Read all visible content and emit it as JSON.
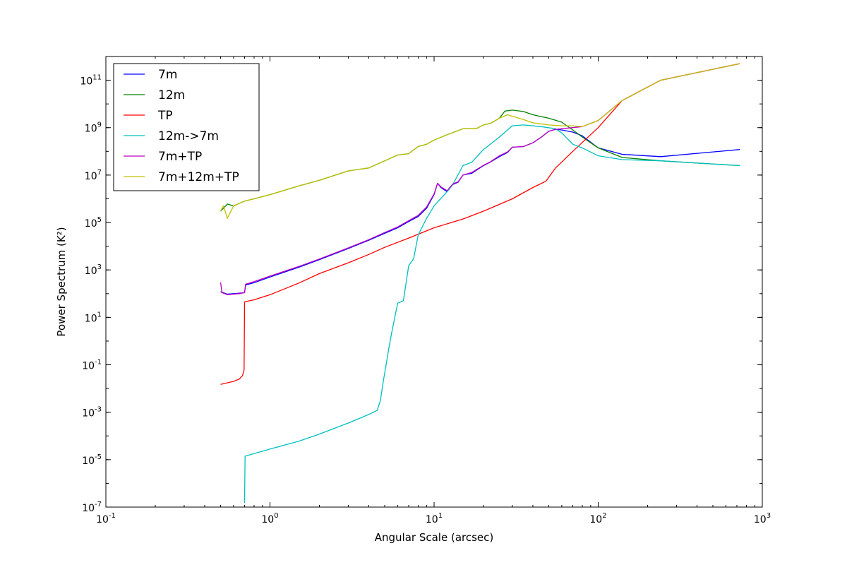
{
  "chart_data": {
    "type": "line",
    "title": "",
    "xlabel": "Angular Scale (arcsec)",
    "ylabel": "Power Spectrum (K²)",
    "xscale": "log",
    "yscale": "log",
    "xlim": [
      0.1,
      1000
    ],
    "ylim": [
      1e-07,
      1000000000000.0
    ],
    "x_ticks": [
      {
        "value": 0.1,
        "base": "10",
        "exp": "-1"
      },
      {
        "value": 1,
        "base": "10",
        "exp": "0"
      },
      {
        "value": 10,
        "base": "10",
        "exp": "1"
      },
      {
        "value": 100,
        "base": "10",
        "exp": "2"
      },
      {
        "value": 1000,
        "base": "10",
        "exp": "3"
      }
    ],
    "y_ticks": [
      {
        "value": 1e-07,
        "base": "10",
        "exp": "-7"
      },
      {
        "value": 1e-05,
        "base": "10",
        "exp": "-5"
      },
      {
        "value": 0.001,
        "base": "10",
        "exp": "-3"
      },
      {
        "value": 0.1,
        "base": "10",
        "exp": "-1"
      },
      {
        "value": 10,
        "base": "10",
        "exp": "1"
      },
      {
        "value": 1000,
        "base": "10",
        "exp": "3"
      },
      {
        "value": 100000,
        "base": "10",
        "exp": "5"
      },
      {
        "value": 10000000,
        "base": "10",
        "exp": "7"
      },
      {
        "value": 1000000000,
        "base": "10",
        "exp": "9"
      },
      {
        "value": 100000000000,
        "base": "10",
        "exp": "11"
      }
    ],
    "grid": false,
    "legend_position": "upper-left",
    "series": [
      {
        "name": "7m",
        "color": "#0000ff",
        "points": [
          [
            0.5,
            120
          ],
          [
            0.55,
            95
          ],
          [
            0.6,
            100
          ],
          [
            0.65,
            105
          ],
          [
            0.7,
            110
          ],
          [
            0.71,
            230
          ],
          [
            0.8,
            290
          ],
          [
            1.0,
            500
          ],
          [
            1.5,
            1300
          ],
          [
            2,
            2700
          ],
          [
            3,
            8000
          ],
          [
            4,
            18000
          ],
          [
            5,
            35000
          ],
          [
            6,
            60000
          ],
          [
            7,
            110000
          ],
          [
            8,
            180000
          ],
          [
            9,
            400000
          ],
          [
            10,
            1500000
          ],
          [
            10.5,
            4500000
          ],
          [
            11,
            3000000
          ],
          [
            12,
            2000000
          ],
          [
            13,
            4000000
          ],
          [
            14,
            5000000
          ],
          [
            15,
            10000000
          ],
          [
            17,
            12000000
          ],
          [
            20,
            25000000
          ],
          [
            22,
            35000000
          ],
          [
            25,
            60000000
          ],
          [
            28,
            90000000
          ],
          [
            30,
            150000000
          ],
          [
            35,
            160000000
          ],
          [
            40,
            230000000
          ],
          [
            45,
            400000000
          ],
          [
            50,
            700000000
          ],
          [
            55,
            850000000
          ],
          [
            60,
            800000000
          ],
          [
            70,
            650000000
          ],
          [
            80,
            450000000
          ],
          [
            100,
            140000000
          ],
          [
            140,
            75000000
          ],
          [
            240,
            60000000
          ],
          [
            730,
            120000000
          ]
        ]
      },
      {
        "name": "12m",
        "color": "#008000",
        "points": [
          [
            0.5,
            300000
          ],
          [
            0.55,
            600000
          ],
          [
            0.6,
            500000
          ],
          [
            0.7,
            800000
          ],
          [
            0.8,
            1000000
          ],
          [
            1,
            1500000
          ],
          [
            1.5,
            3500000
          ],
          [
            2,
            6000000
          ],
          [
            3,
            15000000
          ],
          [
            4,
            20000000
          ],
          [
            5,
            40000000
          ],
          [
            6,
            70000000
          ],
          [
            7,
            80000000
          ],
          [
            8,
            160000000
          ],
          [
            9,
            200000000
          ],
          [
            10,
            300000000
          ],
          [
            12,
            500000000
          ],
          [
            15,
            900000000
          ],
          [
            18,
            900000000
          ],
          [
            20,
            1300000000
          ],
          [
            22,
            1500000000
          ],
          [
            25,
            2500000000
          ],
          [
            27,
            5000000000
          ],
          [
            30,
            5500000000
          ],
          [
            35,
            4800000000
          ],
          [
            40,
            3500000000
          ],
          [
            50,
            2500000000
          ],
          [
            60,
            1700000000
          ],
          [
            70,
            800000000
          ],
          [
            80,
            400000000
          ],
          [
            100,
            140000000
          ],
          [
            140,
            55000000
          ],
          [
            240,
            40000000
          ],
          [
            730,
            25000000
          ]
        ]
      },
      {
        "name": "TP",
        "color": "#ff0000",
        "points": [
          [
            0.5,
            0.015
          ],
          [
            0.6,
            0.02
          ],
          [
            0.65,
            0.025
          ],
          [
            0.68,
            0.035
          ],
          [
            0.695,
            0.06
          ],
          [
            0.7,
            45
          ],
          [
            0.8,
            55
          ],
          [
            1,
            90
          ],
          [
            1.5,
            280
          ],
          [
            2,
            700
          ],
          [
            3,
            2000
          ],
          [
            4,
            4500
          ],
          [
            5,
            9000
          ],
          [
            7,
            22000
          ],
          [
            10,
            60000
          ],
          [
            15,
            140000
          ],
          [
            20,
            300000
          ],
          [
            30,
            1000000
          ],
          [
            40,
            3000000
          ],
          [
            48,
            5500000
          ],
          [
            55,
            20000000
          ],
          [
            70,
            100000000
          ],
          [
            100,
            1000000000
          ],
          [
            140,
            14000000000
          ],
          [
            240,
            100000000000
          ],
          [
            730,
            500000000000
          ]
        ]
      },
      {
        "name": "12m->7m",
        "color": "#00bfbf",
        "points": [
          [
            0.7,
            1.5e-07
          ],
          [
            0.705,
            1.4e-05
          ],
          [
            0.8,
            1.8e-05
          ],
          [
            1,
            2.8e-05
          ],
          [
            1.5,
            6e-05
          ],
          [
            2,
            0.00012
          ],
          [
            3,
            0.00035
          ],
          [
            4,
            0.0008
          ],
          [
            4.5,
            0.0012
          ],
          [
            4.7,
            0.003
          ],
          [
            4.9,
            0.02
          ],
          [
            5.1,
            0.1
          ],
          [
            5.3,
            0.5
          ],
          [
            5.5,
            2
          ],
          [
            6,
            40
          ],
          [
            6.5,
            50
          ],
          [
            7,
            1500
          ],
          [
            7.5,
            3000
          ],
          [
            8,
            30000
          ],
          [
            9,
            150000
          ],
          [
            10,
            500000
          ],
          [
            12,
            2000000
          ],
          [
            13,
            4000000
          ],
          [
            15,
            25000000
          ],
          [
            17,
            35000000
          ],
          [
            20,
            120000000
          ],
          [
            22,
            200000000
          ],
          [
            25,
            400000000
          ],
          [
            30,
            1200000000
          ],
          [
            35,
            1300000000
          ],
          [
            45,
            1100000000
          ],
          [
            55,
            900000000
          ],
          [
            60,
            600000000
          ],
          [
            70,
            200000000
          ],
          [
            80,
            140000000
          ],
          [
            100,
            65000000
          ],
          [
            140,
            45000000
          ],
          [
            240,
            40000000
          ],
          [
            730,
            25000000
          ]
        ]
      },
      {
        "name": "7m+TP",
        "color": "#bf00bf",
        "points": [
          [
            0.5,
            300
          ],
          [
            0.51,
            110
          ],
          [
            0.55,
            90
          ],
          [
            0.6,
            95
          ],
          [
            0.65,
            100
          ],
          [
            0.7,
            110
          ],
          [
            0.71,
            250
          ],
          [
            0.8,
            320
          ],
          [
            1,
            550
          ],
          [
            1.5,
            1400
          ],
          [
            2,
            2900
          ],
          [
            3,
            8500
          ],
          [
            4,
            19000
          ],
          [
            5,
            38000
          ],
          [
            6,
            65000
          ],
          [
            7,
            120000
          ],
          [
            8,
            200000
          ],
          [
            9,
            450000
          ],
          [
            10,
            1600000
          ],
          [
            10.5,
            4500000
          ],
          [
            11,
            3200000
          ],
          [
            12,
            2200000
          ],
          [
            13,
            4200000
          ],
          [
            14,
            5200000
          ],
          [
            15,
            10000000
          ],
          [
            17,
            13000000
          ],
          [
            20,
            26000000
          ],
          [
            22,
            36000000
          ],
          [
            25,
            65000000
          ],
          [
            28,
            95000000
          ],
          [
            30,
            150000000
          ],
          [
            35,
            160000000
          ],
          [
            40,
            230000000
          ],
          [
            45,
            400000000
          ],
          [
            50,
            700000000
          ],
          [
            55,
            850000000
          ],
          [
            60,
            900000000
          ],
          [
            70,
            1000000000
          ],
          [
            80,
            1100000000
          ],
          [
            100,
            2000000000
          ],
          [
            140,
            14000000000
          ],
          [
            240,
            100000000000
          ],
          [
            730,
            500000000000
          ]
        ]
      },
      {
        "name": "7m+12m+TP",
        "color": "#bfbf00",
        "points": [
          [
            0.5,
            300000
          ],
          [
            0.52,
            500000
          ],
          [
            0.55,
            150000
          ],
          [
            0.6,
            500000
          ],
          [
            0.7,
            800000
          ],
          [
            0.8,
            1000000
          ],
          [
            1,
            1500000
          ],
          [
            1.5,
            3500000
          ],
          [
            2,
            6000000
          ],
          [
            3,
            15000000
          ],
          [
            4,
            20000000
          ],
          [
            5,
            40000000
          ],
          [
            6,
            70000000
          ],
          [
            7,
            80000000
          ],
          [
            8,
            160000000
          ],
          [
            9,
            200000000
          ],
          [
            10,
            300000000
          ],
          [
            12,
            500000000
          ],
          [
            15,
            900000000
          ],
          [
            18,
            900000000
          ],
          [
            20,
            1300000000
          ],
          [
            22,
            1500000000
          ],
          [
            25,
            2500000000
          ],
          [
            28,
            3500000000
          ],
          [
            30,
            3000000000
          ],
          [
            35,
            2200000000
          ],
          [
            40,
            1600000000
          ],
          [
            50,
            1300000000
          ],
          [
            60,
            1200000000
          ],
          [
            70,
            1200000000
          ],
          [
            80,
            1100000000
          ],
          [
            100,
            2000000000
          ],
          [
            140,
            14000000000
          ],
          [
            240,
            100000000000
          ],
          [
            730,
            500000000000
          ]
        ]
      }
    ]
  }
}
